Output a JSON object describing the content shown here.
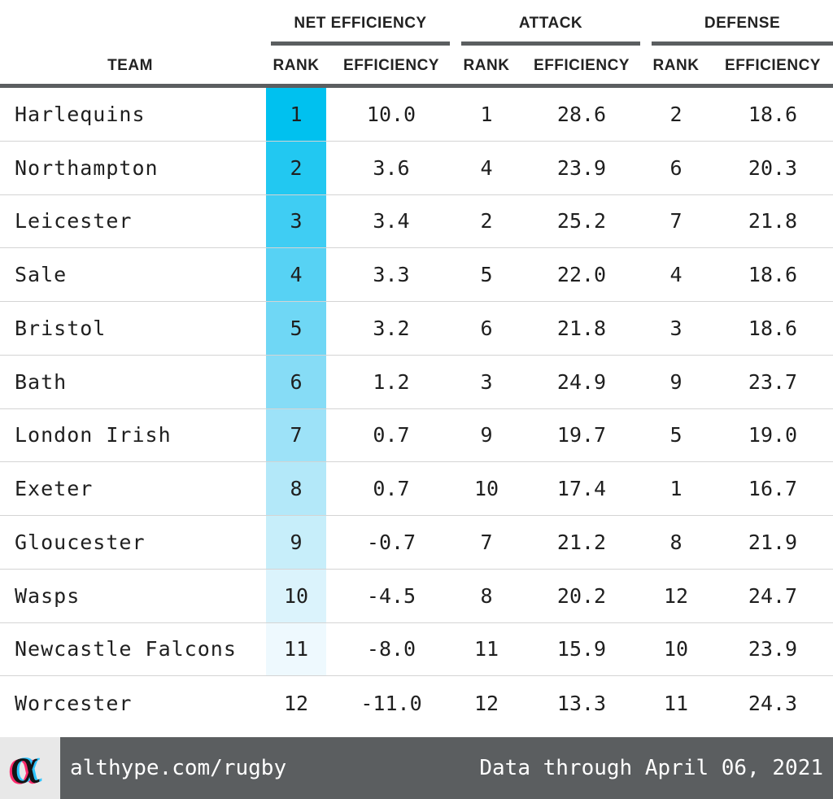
{
  "chart_data": {
    "type": "table",
    "group_headers": [
      "NET EFFICIENCY",
      "ATTACK",
      "DEFENSE"
    ],
    "column_headers": [
      "TEAM",
      "RANK",
      "EFFICIENCY",
      "RANK",
      "EFFICIENCY",
      "RANK",
      "EFFICIENCY"
    ],
    "rows": [
      {
        "team": "Harlequins",
        "net_rank": "1",
        "net_eff": "10.0",
        "att_rank": "1",
        "att_eff": "28.6",
        "def_rank": "2",
        "def_eff": "18.6"
      },
      {
        "team": "Northampton",
        "net_rank": "2",
        "net_eff": "3.6",
        "att_rank": "4",
        "att_eff": "23.9",
        "def_rank": "6",
        "def_eff": "20.3"
      },
      {
        "team": "Leicester",
        "net_rank": "3",
        "net_eff": "3.4",
        "att_rank": "2",
        "att_eff": "25.2",
        "def_rank": "7",
        "def_eff": "21.8"
      },
      {
        "team": "Sale",
        "net_rank": "4",
        "net_eff": "3.3",
        "att_rank": "5",
        "att_eff": "22.0",
        "def_rank": "4",
        "def_eff": "18.6"
      },
      {
        "team": "Bristol",
        "net_rank": "5",
        "net_eff": "3.2",
        "att_rank": "6",
        "att_eff": "21.8",
        "def_rank": "3",
        "def_eff": "18.6"
      },
      {
        "team": "Bath",
        "net_rank": "6",
        "net_eff": "1.2",
        "att_rank": "3",
        "att_eff": "24.9",
        "def_rank": "9",
        "def_eff": "23.7"
      },
      {
        "team": "London Irish",
        "net_rank": "7",
        "net_eff": "0.7",
        "att_rank": "9",
        "att_eff": "19.7",
        "def_rank": "5",
        "def_eff": "19.0"
      },
      {
        "team": "Exeter",
        "net_rank": "8",
        "net_eff": "0.7",
        "att_rank": "10",
        "att_eff": "17.4",
        "def_rank": "1",
        "def_eff": "16.7"
      },
      {
        "team": "Gloucester",
        "net_rank": "9",
        "net_eff": "-0.7",
        "att_rank": "7",
        "att_eff": "21.2",
        "def_rank": "8",
        "def_eff": "21.9"
      },
      {
        "team": "Wasps",
        "net_rank": "10",
        "net_eff": "-4.5",
        "att_rank": "8",
        "att_eff": "20.2",
        "def_rank": "12",
        "def_eff": "24.7"
      },
      {
        "team": "Newcastle Falcons",
        "net_rank": "11",
        "net_eff": "-8.0",
        "att_rank": "11",
        "att_eff": "15.9",
        "def_rank": "10",
        "def_eff": "23.9"
      },
      {
        "team": "Worcester",
        "net_rank": "12",
        "net_eff": "-11.0",
        "att_rank": "12",
        "att_eff": "13.3",
        "def_rank": "11",
        "def_eff": "24.3"
      }
    ],
    "rank_colors": [
      "#00c1ef",
      "#22c8f1",
      "#3fcdf3",
      "#57d2f4",
      "#6fd7f5",
      "#86dcf6",
      "#9de2f8",
      "#b3e8f9",
      "#c7eefa",
      "#dbf3fc",
      "#eef9fe",
      "#ffffff"
    ]
  },
  "footer": {
    "logo_glyph": "α",
    "site": "althype.com/rugby",
    "stamp": "Data through April 06, 2021"
  },
  "colors": {
    "accent": "#00c1ef",
    "rule": "#5b5e60",
    "footer_bg": "#5b5e60",
    "logo_bg": "#e8e8e8"
  }
}
